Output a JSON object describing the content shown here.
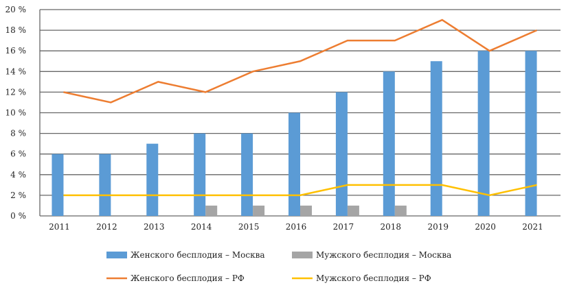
{
  "chart_data": {
    "type": "bar+line",
    "categories": [
      "2011",
      "2012",
      "2013",
      "2014",
      "2015",
      "2016",
      "2017",
      "2018",
      "2019",
      "2020",
      "2021"
    ],
    "y_ticks": [
      "0 %",
      "2 %",
      "4 %",
      "6 %",
      "8 %",
      "10 %",
      "12 %",
      "14 %",
      "16 %",
      "18  %",
      "20 %"
    ],
    "ylim": [
      0,
      20
    ],
    "grid": true,
    "legend_placement": "bottom",
    "series": [
      {
        "name": "Женского бесплодия – Москва",
        "kind": "bar",
        "color": "#5b9bd5",
        "values": [
          6,
          6,
          7,
          8,
          8,
          10,
          12,
          14,
          15,
          16,
          16
        ]
      },
      {
        "name": "Мужского бесплодия – Москва",
        "kind": "bar",
        "color": "#a5a5a5",
        "values": [
          0,
          0,
          0,
          1,
          1,
          1,
          1,
          1,
          0,
          0,
          0
        ]
      },
      {
        "name": "Женского бесплодия – РФ",
        "kind": "line",
        "color": "#ed7d31",
        "values": [
          12,
          11,
          13,
          12,
          14,
          15,
          17,
          17,
          19,
          16,
          18
        ]
      },
      {
        "name": "Мужского бесплодия – РФ",
        "kind": "line",
        "color": "#ffc000",
        "values": [
          2,
          2,
          2,
          2,
          2,
          2,
          3,
          3,
          3,
          2,
          3
        ]
      }
    ]
  }
}
